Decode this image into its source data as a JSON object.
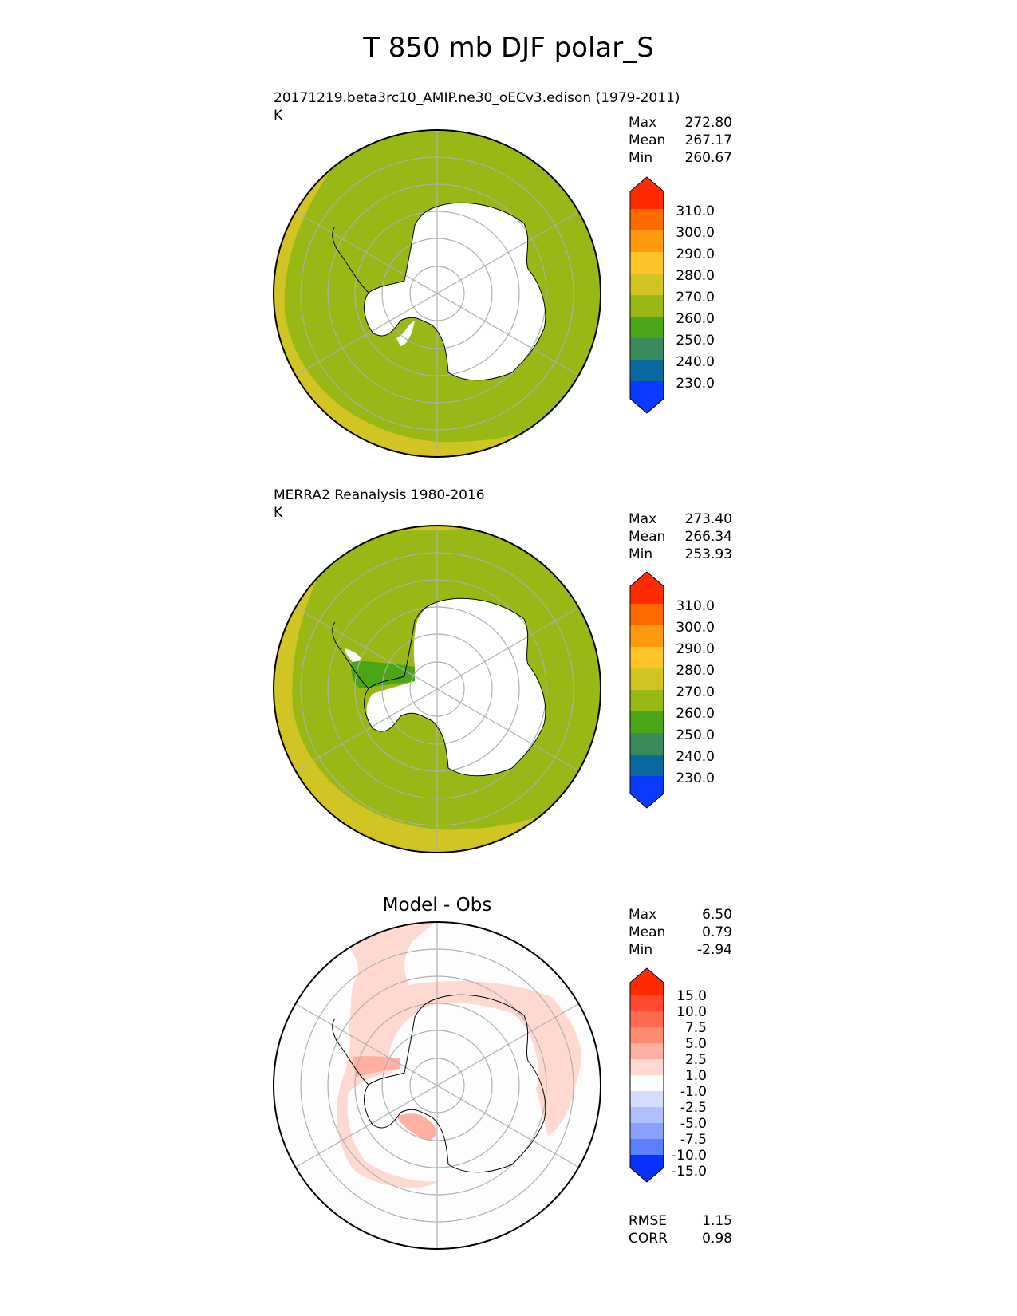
{
  "title": "T 850 mb DJF polar_S",
  "panels": [
    {
      "id": "model",
      "heading": "",
      "subtitle": "20171219.beta3rc10_AMIP.ne30_oECv3.edison (1979-2011)",
      "units": "K",
      "stats": [
        {
          "label": "Max",
          "value": "272.80"
        },
        {
          "label": "Mean",
          "value": "267.17"
        },
        {
          "label": "Min",
          "value": "260.67"
        }
      ],
      "colorbar": {
        "labels": [
          "310.0",
          "300.0",
          "290.0",
          "280.0",
          "270.0",
          "260.0",
          "250.0",
          "240.0",
          "230.0"
        ],
        "colors": [
          "#ff2a00",
          "#ff6a00",
          "#ff9a10",
          "#ffc428",
          "#d2c423",
          "#98b816",
          "#4aa517",
          "#3a8a5c",
          "#0a6aa0",
          "#0a3aff"
        ]
      }
    },
    {
      "id": "obs",
      "heading": "",
      "subtitle": "MERRA2 Reanalysis 1980-2016",
      "units": "K",
      "stats": [
        {
          "label": "Max",
          "value": "273.40"
        },
        {
          "label": "Mean",
          "value": "266.34"
        },
        {
          "label": "Min",
          "value": "253.93"
        }
      ],
      "colorbar": {
        "labels": [
          "310.0",
          "300.0",
          "290.0",
          "280.0",
          "270.0",
          "260.0",
          "250.0",
          "240.0",
          "230.0"
        ],
        "colors": [
          "#ff2a00",
          "#ff6a00",
          "#ff9a10",
          "#ffc428",
          "#d2c423",
          "#98b816",
          "#4aa517",
          "#3a8a5c",
          "#0a6aa0",
          "#0a3aff"
        ]
      }
    },
    {
      "id": "diff",
      "heading": "Model - Obs",
      "subtitle": "",
      "units": "",
      "stats": [
        {
          "label": "Max",
          "value": "6.50"
        },
        {
          "label": "Mean",
          "value": "0.79"
        },
        {
          "label": "Min",
          "value": "-2.94"
        }
      ],
      "colorbar": {
        "labels": [
          "15.0",
          "10.0",
          "7.5",
          "5.0",
          "2.5",
          "1.0",
          "-1.0",
          "-2.5",
          "-5.0",
          "-7.5",
          "-10.0",
          "-15.0"
        ],
        "colors": [
          "#ff2a00",
          "#ff4a30",
          "#ff6a50",
          "#ff8a72",
          "#ffb0a0",
          "#ffd8d0",
          "#ffffff",
          "#d4dcff",
          "#b0c0ff",
          "#8aa0ff",
          "#5a80ff",
          "#2a55ff",
          "#0a30ff"
        ]
      },
      "metrics": [
        {
          "label": "RMSE",
          "value": "1.15"
        },
        {
          "label": "CORR",
          "value": "0.98"
        }
      ]
    }
  ],
  "map_colors": {
    "mid_band": "#98b816",
    "outer_band": "#d2c423",
    "obs_cold_patch": "#4aa517",
    "land": "#ffffff",
    "diff_background": "#fdfdfd",
    "diff_positive": "#ffd8d0",
    "diff_strong": "#ffb0a0",
    "grid": "#b0b0b0",
    "coast": "#000000"
  }
}
